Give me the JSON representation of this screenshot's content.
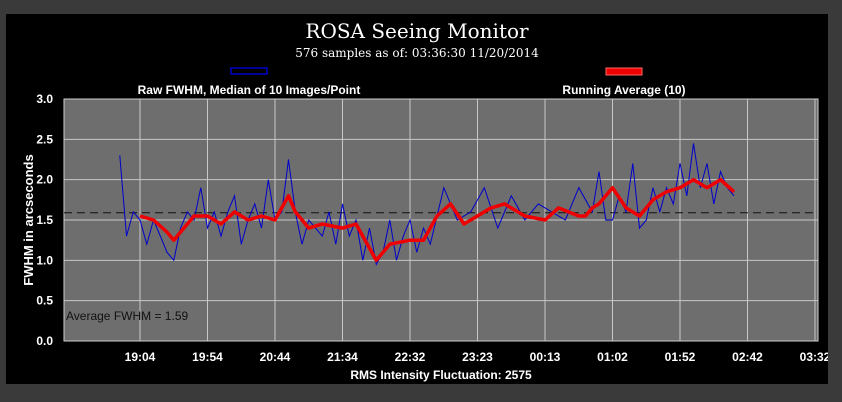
{
  "chart_data": {
    "type": "line",
    "title": "ROSA Seeing Monitor",
    "subtitle": "576 samples as of: 03:36:30 11/20/2014",
    "ylabel": "FWHM in arcseconds",
    "xlabel": "RMS Intensity Fluctuation: 2575",
    "annotation": "Average FWHM = 1.59",
    "ylim": [
      0,
      3
    ],
    "y_ticks": [
      "0.0",
      "0.5",
      "1.0",
      "1.5",
      "2.0",
      "2.5",
      "3.0"
    ],
    "x_ticks": [
      "19:04",
      "19:54",
      "20:44",
      "21:34",
      "22:32",
      "23:23",
      "00:13",
      "01:02",
      "01:52",
      "02:42",
      "03:32"
    ],
    "grid": true,
    "average_line": 1.59,
    "legend": [
      {
        "name": "Raw FWHM, Median of 10 Images/Point",
        "color": "#0000cc",
        "placement": "top-left"
      },
      {
        "name": "Running Average (10)",
        "color": "#ee0000",
        "placement": "top-right"
      }
    ],
    "series": [
      {
        "name": "Raw FWHM, Median of 10 Images/Point",
        "color": "#0000cc",
        "x": [
          -0.3,
          -0.2,
          -0.1,
          0.0,
          0.1,
          0.2,
          0.3,
          0.4,
          0.5,
          0.6,
          0.7,
          0.8,
          0.9,
          1.0,
          1.1,
          1.2,
          1.3,
          1.4,
          1.5,
          1.6,
          1.7,
          1.8,
          1.9,
          2.0,
          2.1,
          2.2,
          2.3,
          2.4,
          2.5,
          2.6,
          2.7,
          2.8,
          2.9,
          3.0,
          3.1,
          3.2,
          3.3,
          3.4,
          3.5,
          3.6,
          3.7,
          3.8,
          3.9,
          4.0,
          4.1,
          4.2,
          4.3,
          4.5,
          4.7,
          4.9,
          5.1,
          5.3,
          5.5,
          5.7,
          5.9,
          6.1,
          6.3,
          6.5,
          6.7,
          6.8,
          6.9,
          7.0,
          7.1,
          7.2,
          7.3,
          7.4,
          7.5,
          7.6,
          7.7,
          7.8,
          7.9,
          8.0,
          8.1,
          8.2,
          8.3,
          8.4,
          8.5,
          8.6,
          8.7,
          8.8
        ],
        "values": [
          2.3,
          1.3,
          1.6,
          1.5,
          1.2,
          1.5,
          1.3,
          1.1,
          1.0,
          1.4,
          1.6,
          1.5,
          1.9,
          1.4,
          1.6,
          1.3,
          1.6,
          1.8,
          1.2,
          1.5,
          1.7,
          1.4,
          2.0,
          1.5,
          1.6,
          2.25,
          1.6,
          1.2,
          1.5,
          1.4,
          1.3,
          1.6,
          1.2,
          1.7,
          1.3,
          1.5,
          1.0,
          1.4,
          0.95,
          1.1,
          1.5,
          1.0,
          1.3,
          1.5,
          1.1,
          1.4,
          1.2,
          1.9,
          1.5,
          1.6,
          1.9,
          1.4,
          1.8,
          1.5,
          1.7,
          1.6,
          1.5,
          1.9,
          1.6,
          2.1,
          1.5,
          1.5,
          1.8,
          1.6,
          2.2,
          1.4,
          1.5,
          1.9,
          1.6,
          1.9,
          1.7,
          2.2,
          1.8,
          2.45,
          1.9,
          2.2,
          1.7,
          2.1,
          1.9,
          1.8
        ]
      },
      {
        "name": "Running Average (10)",
        "color": "#ee0000",
        "x": [
          0.0,
          0.2,
          0.4,
          0.5,
          0.6,
          0.8,
          1.0,
          1.2,
          1.4,
          1.6,
          1.8,
          2.0,
          2.2,
          2.3,
          2.5,
          2.7,
          3.0,
          3.2,
          3.4,
          3.5,
          3.7,
          4.0,
          4.2,
          4.4,
          4.6,
          4.8,
          5.0,
          5.2,
          5.4,
          5.7,
          6.0,
          6.2,
          6.5,
          6.6,
          6.7,
          6.8,
          7.0,
          7.2,
          7.4,
          7.6,
          7.8,
          8.0,
          8.2,
          8.4,
          8.6,
          8.8
        ],
        "values": [
          1.55,
          1.5,
          1.35,
          1.25,
          1.35,
          1.55,
          1.55,
          1.45,
          1.6,
          1.5,
          1.55,
          1.5,
          1.8,
          1.6,
          1.4,
          1.45,
          1.4,
          1.45,
          1.15,
          1.0,
          1.2,
          1.25,
          1.25,
          1.55,
          1.7,
          1.45,
          1.55,
          1.65,
          1.7,
          1.55,
          1.5,
          1.65,
          1.55,
          1.55,
          1.65,
          1.7,
          1.9,
          1.65,
          1.55,
          1.75,
          1.85,
          1.9,
          2.0,
          1.9,
          2.0,
          1.85
        ]
      }
    ]
  }
}
